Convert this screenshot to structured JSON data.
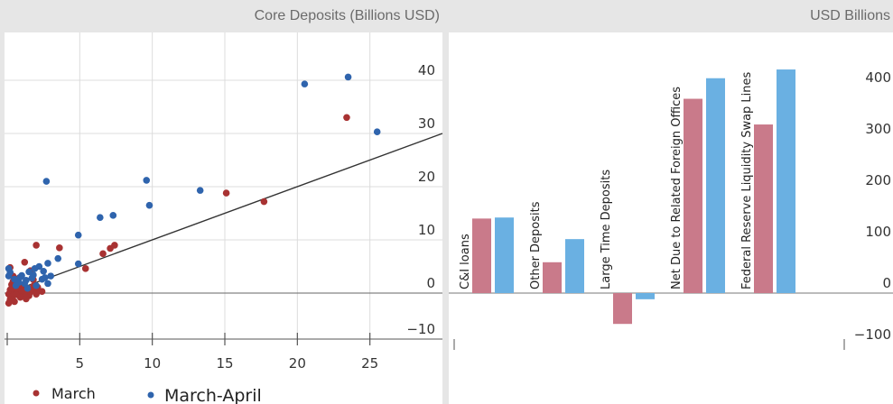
{
  "colors": {
    "march": "#a83232",
    "march_april": "#2f64ad",
    "bar_red": "#c97a8a",
    "bar_blue": "#6ab0e2",
    "grid": "#dcdcdc",
    "axis": "#555555",
    "panel_bg": "#ffffff",
    "page_bg": "#e6e6e6"
  },
  "left_panel": {
    "title": "Core Deposits (Billions USD)"
  },
  "right_panel": {
    "title": "USD Billions"
  },
  "chart_data": [
    {
      "type": "scatter",
      "title": "Core Deposits (Billions USD)",
      "xlim": [
        0,
        30
      ],
      "ylim": [
        -10,
        45
      ],
      "x_ticks": [
        5,
        10,
        15,
        20,
        25
      ],
      "y_ticks": [
        -10,
        0,
        10,
        20,
        30,
        40
      ],
      "grid": true,
      "legend_position": "bottom-left",
      "fit_line": {
        "x0": 0,
        "y0": 0,
        "x1": 30,
        "y1": 30
      },
      "series": [
        {
          "name": "March",
          "color_key": "march",
          "points": [
            [
              23.4,
              33.0
            ],
            [
              15.1,
              18.8
            ],
            [
              17.7,
              17.2
            ],
            [
              7.4,
              9.0
            ],
            [
              7.1,
              8.4
            ],
            [
              6.6,
              7.4
            ],
            [
              5.4,
              4.6
            ],
            [
              2.0,
              9.0
            ],
            [
              3.6,
              8.5
            ],
            [
              1.2,
              5.8
            ],
            [
              1.6,
              4.2
            ],
            [
              0.2,
              4.8
            ],
            [
              0.4,
              3.2
            ],
            [
              0.8,
              2.8
            ],
            [
              1.8,
              2.5
            ],
            [
              0.3,
              1.6
            ],
            [
              0.6,
              1.2
            ],
            [
              1.2,
              1.0
            ],
            [
              1.8,
              1.3
            ],
            [
              2.1,
              1.1
            ],
            [
              0.2,
              0.6
            ],
            [
              0.5,
              0.3
            ],
            [
              0.9,
              0.8
            ],
            [
              1.4,
              0.4
            ],
            [
              1.9,
              0.6
            ],
            [
              0.1,
              -0.2
            ],
            [
              0.4,
              -0.5
            ],
            [
              0.7,
              0.1
            ],
            [
              1.1,
              -0.3
            ],
            [
              1.6,
              0.2
            ],
            [
              2.2,
              0.4
            ],
            [
              0.2,
              -1.2
            ],
            [
              0.5,
              -1.6
            ],
            [
              0.9,
              -0.8
            ],
            [
              1.3,
              -1.1
            ],
            [
              0.1,
              -1.9
            ],
            [
              0.6,
              -0.3
            ],
            [
              0.3,
              0.9
            ],
            [
              1.0,
              0.5
            ],
            [
              1.7,
              0.7
            ],
            [
              2.4,
              0.3
            ],
            [
              0.8,
              1.5
            ],
            [
              1.5,
              -0.5
            ],
            [
              0.4,
              2.2
            ],
            [
              2.0,
              -0.2
            ]
          ]
        },
        {
          "name": "March-April",
          "color_key": "march_april",
          "points": [
            [
              23.5,
              40.6
            ],
            [
              20.5,
              39.3
            ],
            [
              25.5,
              30.3
            ],
            [
              2.7,
              21.0
            ],
            [
              9.6,
              21.2
            ],
            [
              13.3,
              19.3
            ],
            [
              9.8,
              16.5
            ],
            [
              7.3,
              14.6
            ],
            [
              6.4,
              14.2
            ],
            [
              4.9,
              10.9
            ],
            [
              3.5,
              6.5
            ],
            [
              4.9,
              5.5
            ],
            [
              2.8,
              5.6
            ],
            [
              2.2,
              5.0
            ],
            [
              1.9,
              4.6
            ],
            [
              1.5,
              4.0
            ],
            [
              2.5,
              4.1
            ],
            [
              1.0,
              3.3
            ],
            [
              1.7,
              2.8
            ],
            [
              1.3,
              2.4
            ],
            [
              2.4,
              2.6
            ],
            [
              0.8,
              2.0
            ],
            [
              1.2,
              1.8
            ],
            [
              2.8,
              1.8
            ],
            [
              0.6,
              1.4
            ],
            [
              1.4,
              0.9
            ],
            [
              0.1,
              4.6
            ],
            [
              0.2,
              3.9
            ],
            [
              0.1,
              3.2
            ],
            [
              2.0,
              1.4
            ],
            [
              0.9,
              3.0
            ],
            [
              3.0,
              3.2
            ],
            [
              1.8,
              3.4
            ],
            [
              2.6,
              2.9
            ],
            [
              0.5,
              2.6
            ]
          ]
        }
      ]
    },
    {
      "type": "bar",
      "title": "USD Billions",
      "ylim": [
        -100,
        450
      ],
      "y_ticks": [
        -100,
        0,
        100,
        200,
        300,
        400
      ],
      "grid": false,
      "categories": [
        "C&I loans",
        "Other Deposits",
        "Large Time Deposits",
        "Net Due to Related Foreign Offices",
        "Federal Reserve Liquidity Swap Lines"
      ],
      "series": [
        {
          "color_key": "bar_red",
          "values": [
            145,
            60,
            -60,
            378,
            328
          ]
        },
        {
          "color_key": "bar_blue",
          "values": [
            147,
            105,
            -12,
            418,
            435
          ]
        }
      ]
    }
  ]
}
